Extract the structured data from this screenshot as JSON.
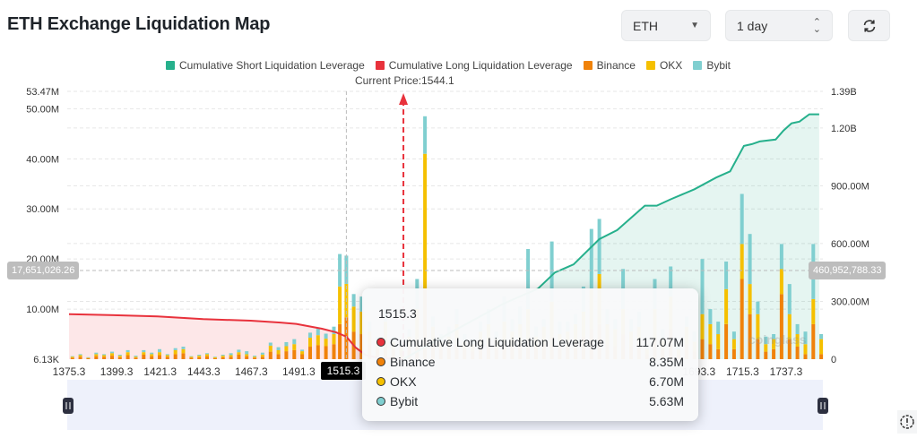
{
  "header": {
    "title": "ETH Exchange Liquidation Map",
    "symbol_select": "ETH",
    "range_select": "1 day",
    "refresh_icon": "refresh-icon"
  },
  "colors": {
    "short": "#26b08c",
    "long": "#e8323c",
    "binance": "#f0820a",
    "okx": "#f5c000",
    "bybit": "#80cfd0"
  },
  "crosshair": {
    "price_label": "1515.3",
    "left_value": "17,651,026.26",
    "right_value": "460,952,788.33"
  },
  "tooltip": {
    "title": "1515.3",
    "rows": [
      {
        "label": "Cumulative Long Liquidation Leverage",
        "value": "117.07M",
        "color": "#e8323c"
      },
      {
        "label": "Binance",
        "value": "8.35M",
        "color": "#f0820a"
      },
      {
        "label": "OKX",
        "value": "6.70M",
        "color": "#f5c000"
      },
      {
        "label": "Bybit",
        "value": "5.63M",
        "color": "#80cfd0"
      }
    ]
  },
  "chart_data": {
    "type": "bar",
    "title": "",
    "legend": [
      "Cumulative Short Liquidation Leverage",
      "Cumulative Long Liquidation Leverage",
      "Binance",
      "OKX",
      "Bybit"
    ],
    "legend_position": "top",
    "annotation": "Current Price:1544.1",
    "current_price": 1544.1,
    "x_tick_labels": [
      "1375.3",
      "1399.3",
      "1421.3",
      "1443.3",
      "1467.3",
      "1491.3",
      "1515.3",
      "1693.3",
      "1715.3",
      "1737.3"
    ],
    "left_axis": {
      "ticks": [
        "6.13K",
        "10.00M",
        "20.00M",
        "30.00M",
        "40.00M",
        "50.00M",
        "53.47M"
      ],
      "range_M": [
        0,
        53.47
      ]
    },
    "right_axis": {
      "ticks": [
        "0",
        "300.00M",
        "600.00M",
        "900.00M",
        "1.20B",
        "1.39B"
      ],
      "range_M": [
        0,
        1390
      ]
    },
    "grid": true,
    "bars_columns": [
      "price",
      "binance_M",
      "okx_M",
      "bybit_M"
    ],
    "bars": [
      [
        1377,
        0.3,
        0.2,
        0.1
      ],
      [
        1381,
        0.5,
        0.3,
        0.2
      ],
      [
        1385,
        0.2,
        0.1,
        0.1
      ],
      [
        1389,
        0.6,
        0.4,
        0.3
      ],
      [
        1393,
        0.5,
        0.3,
        0.2
      ],
      [
        1397,
        0.7,
        0.5,
        0.3
      ],
      [
        1401,
        0.4,
        0.3,
        0.2
      ],
      [
        1405,
        0.8,
        0.6,
        0.4
      ],
      [
        1409,
        0.3,
        0.2,
        0.2
      ],
      [
        1413,
        0.9,
        0.5,
        0.4
      ],
      [
        1417,
        0.6,
        0.4,
        0.3
      ],
      [
        1421,
        0.8,
        0.6,
        0.6
      ],
      [
        1425,
        0.5,
        0.3,
        0.2
      ],
      [
        1429,
        1.0,
        0.8,
        0.4
      ],
      [
        1433,
        1.2,
        0.8,
        0.5
      ],
      [
        1437,
        0.3,
        0.2,
        0.1
      ],
      [
        1441,
        0.4,
        0.3,
        0.2
      ],
      [
        1445,
        0.6,
        0.4,
        0.2
      ],
      [
        1449,
        0.2,
        0.2,
        0.1
      ],
      [
        1453,
        0.4,
        0.3,
        0.2
      ],
      [
        1457,
        0.5,
        0.3,
        0.4
      ],
      [
        1461,
        0.9,
        0.5,
        0.5
      ],
      [
        1465,
        0.6,
        0.4,
        0.6
      ],
      [
        1469,
        0.3,
        0.2,
        0.2
      ],
      [
        1473,
        0.5,
        0.4,
        0.4
      ],
      [
        1477,
        1.5,
        1.2,
        0.6
      ],
      [
        1481,
        1.0,
        0.8,
        0.6
      ],
      [
        1485,
        1.6,
        1.0,
        0.8
      ],
      [
        1489,
        1.8,
        1.2,
        1.0
      ],
      [
        1493,
        1.0,
        0.6,
        0.3
      ],
      [
        1497,
        2.5,
        1.8,
        1.0
      ],
      [
        1501,
        2.8,
        2.0,
        1.3
      ],
      [
        1505,
        2.6,
        1.5,
        1.0
      ],
      [
        1509,
        3.0,
        2.0,
        1.5
      ],
      [
        1512,
        7.0,
        7.5,
        6.5
      ],
      [
        1515.3,
        8.35,
        6.7,
        5.63
      ],
      [
        1519,
        5.5,
        5.0,
        2.5
      ],
      [
        1523,
        5.0,
        4.5,
        3.0
      ],
      [
        1527,
        3.0,
        2.5,
        2.0
      ],
      [
        1531,
        2.0,
        1.5,
        1.0
      ],
      [
        1535,
        4.0,
        3.5,
        2.5
      ],
      [
        1539,
        2.0,
        1.5,
        1.0
      ],
      [
        1543,
        1.5,
        1.0,
        0.8
      ],
      [
        1547,
        2.5,
        2.0,
        1.5
      ],
      [
        1551,
        4.0,
        6.0,
        6.0
      ],
      [
        1555,
        14.0,
        27.0,
        7.5
      ],
      [
        1559,
        3.0,
        3.5,
        2.0
      ],
      [
        1563,
        2.0,
        1.5,
        1.5
      ],
      [
        1567,
        2.5,
        2.0,
        2.0
      ],
      [
        1571,
        3.0,
        4.0,
        3.0
      ],
      [
        1575,
        2.0,
        1.5,
        1.5
      ],
      [
        1579,
        1.5,
        1.5,
        1.0
      ],
      [
        1583,
        2.5,
        3.0,
        2.0
      ],
      [
        1587,
        3.0,
        4.0,
        3.0
      ],
      [
        1591,
        2.0,
        2.0,
        1.5
      ],
      [
        1595,
        3.5,
        4.0,
        5.0
      ],
      [
        1599,
        2.5,
        3.0,
        2.5
      ],
      [
        1603,
        3.0,
        4.0,
        3.5
      ],
      [
        1607,
        4.0,
        6.0,
        12.0
      ],
      [
        1611,
        2.5,
        2.0,
        2.0
      ],
      [
        1615,
        3.0,
        3.5,
        1.5
      ],
      [
        1619,
        4.5,
        7.0,
        12.0
      ],
      [
        1623,
        3.0,
        2.0,
        2.5
      ],
      [
        1627,
        2.5,
        3.0,
        2.0
      ],
      [
        1631,
        3.0,
        4.0,
        2.0
      ],
      [
        1635,
        4.5,
        5.0,
        5.0
      ],
      [
        1639,
        6.0,
        8.0,
        12.0
      ],
      [
        1643,
        7.0,
        10.0,
        11.0
      ],
      [
        1647,
        3.0,
        4.0,
        3.0
      ],
      [
        1651,
        2.5,
        3.5,
        2.0
      ],
      [
        1655,
        5.0,
        5.0,
        8.0
      ],
      [
        1659,
        2.5,
        3.0,
        2.5
      ],
      [
        1663,
        3.0,
        3.5,
        3.0
      ],
      [
        1667,
        1.0,
        1.0,
        1.0
      ],
      [
        1671,
        4.0,
        6.0,
        6.0
      ],
      [
        1675,
        2.0,
        2.0,
        2.0
      ],
      [
        1679,
        6.0,
        6.5,
        6.0
      ],
      [
        1683,
        1.0,
        1.0,
        1.0
      ],
      [
        1687,
        3.0,
        3.5,
        2.0
      ],
      [
        1691,
        1.5,
        2.0,
        2.0
      ],
      [
        1695,
        4.0,
        5.0,
        11.0
      ],
      [
        1699,
        3.0,
        4.0,
        3.0
      ],
      [
        1703,
        2.0,
        3.0,
        2.5
      ],
      [
        1707,
        7.0,
        7.0,
        5.5
      ],
      [
        1711,
        2.0,
        2.0,
        1.5
      ],
      [
        1715,
        16.0,
        7.0,
        10.0
      ],
      [
        1719,
        9.0,
        6.0,
        10.0
      ],
      [
        1723,
        4.0,
        5.0,
        2.5
      ],
      [
        1727,
        1.5,
        1.5,
        1.5
      ],
      [
        1731,
        2.0,
        2.0,
        1.0
      ],
      [
        1735,
        13.0,
        5.0,
        5.0
      ],
      [
        1739,
        4.0,
        5.0,
        6.0
      ],
      [
        1743,
        2.5,
        2.5,
        2.0
      ],
      [
        1747,
        1.0,
        2.0,
        2.5
      ],
      [
        1751,
        7.0,
        5.0,
        11.0
      ],
      [
        1755,
        1.0,
        3.0,
        1.0
      ]
    ],
    "cumulative_long_M": [
      [
        1375.3,
        234
      ],
      [
        1400,
        228
      ],
      [
        1420,
        222
      ],
      [
        1443,
        208
      ],
      [
        1467,
        200
      ],
      [
        1482,
        190
      ],
      [
        1490,
        183
      ],
      [
        1503,
        158
      ],
      [
        1510,
        140
      ],
      [
        1515.3,
        117.07
      ],
      [
        1520,
        60
      ],
      [
        1525,
        22
      ],
      [
        1532,
        5
      ],
      [
        1544.1,
        0
      ]
    ],
    "cumulative_short_M": [
      [
        1544.1,
        0
      ],
      [
        1570,
        150
      ],
      [
        1595,
        290
      ],
      [
        1612,
        366
      ],
      [
        1620.6,
        450
      ],
      [
        1630,
        492
      ],
      [
        1643,
        623
      ],
      [
        1652,
        670
      ],
      [
        1666,
        797
      ],
      [
        1672,
        797
      ],
      [
        1679,
        830
      ],
      [
        1691,
        882
      ],
      [
        1702,
        943
      ],
      [
        1709,
        975
      ],
      [
        1716,
        1107
      ],
      [
        1720,
        1116
      ],
      [
        1724,
        1130
      ],
      [
        1732,
        1140
      ],
      [
        1736,
        1187
      ],
      [
        1740,
        1224
      ],
      [
        1744,
        1233
      ],
      [
        1749,
        1271
      ],
      [
        1754,
        1271
      ]
    ]
  }
}
